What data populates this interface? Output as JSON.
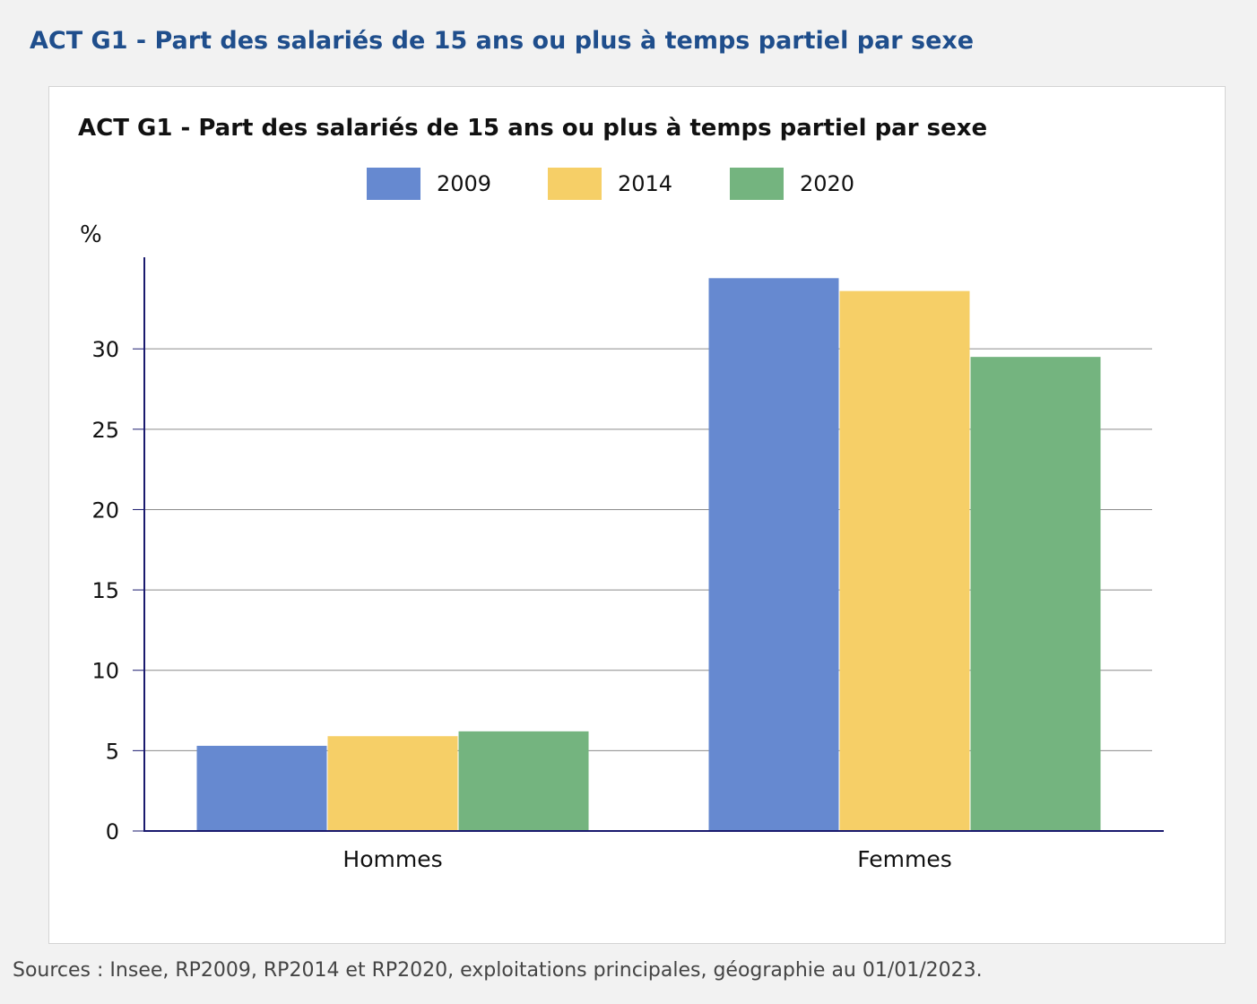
{
  "page": {
    "heading": "ACT G1 - Part des salariés de 15 ans ou plus à temps partiel par sexe",
    "source": "Sources : Insee, RP2009, RP2014 et RP2020, exploitations principales, géographie au 01/01/2023."
  },
  "colors": {
    "heading": "#1f4e8c",
    "axis": "#1a1a6e",
    "grid": "#8c8c8c"
  },
  "chart_data": {
    "type": "bar",
    "title": "ACT G1 - Part des salariés de 15 ans ou plus à temps partiel par sexe",
    "ylabel": "%",
    "xlabel": "",
    "categories": [
      "Hommes",
      "Femmes"
    ],
    "series": [
      {
        "name": "2009",
        "color": "#6689d0",
        "values": [
          5.3,
          34.4
        ]
      },
      {
        "name": "2014",
        "color": "#f6cf67",
        "values": [
          5.9,
          33.6
        ]
      },
      {
        "name": "2020",
        "color": "#74b47f",
        "values": [
          6.2,
          29.5
        ]
      }
    ],
    "ylim": [
      0,
      35.7
    ],
    "yticks": [
      0,
      5,
      10,
      15,
      20,
      25,
      30
    ],
    "grid": true,
    "legend": "top-center"
  }
}
